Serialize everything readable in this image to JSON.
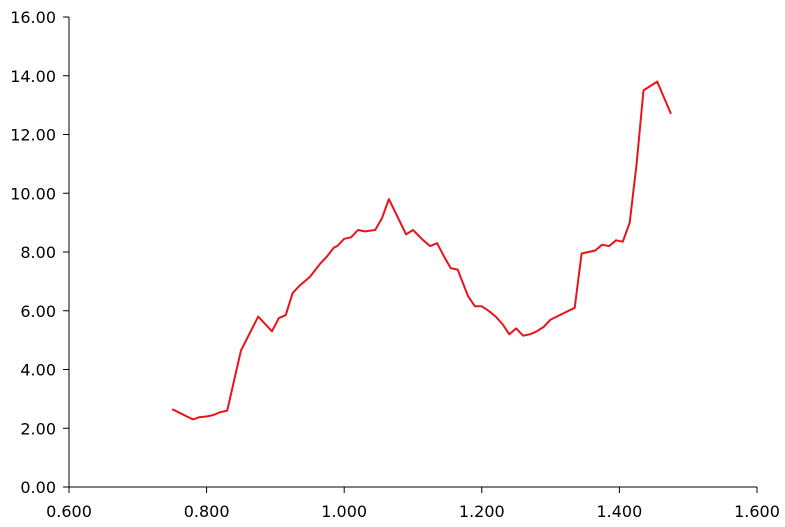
{
  "chart_data": {
    "type": "line",
    "title": "",
    "xlabel": "",
    "ylabel": "",
    "xlim": [
      0.6,
      1.6
    ],
    "ylim": [
      0,
      16
    ],
    "x_ticks": [
      "0.600",
      "0.800",
      "1.000",
      "1.200",
      "1.400",
      "1.600"
    ],
    "y_ticks": [
      "0.00",
      "2.00",
      "4.00",
      "6.00",
      "8.00",
      "10.00",
      "12.00",
      "14.00",
      "16.00"
    ],
    "grid": false,
    "legend": "none",
    "line_color": "#e8141b",
    "series": [
      {
        "x": [
          0.75,
          0.78,
          0.79,
          0.8,
          0.81,
          0.82,
          0.83,
          0.85,
          0.875,
          0.895,
          0.905,
          0.915,
          0.925,
          0.935,
          0.95,
          0.965,
          0.975,
          0.985,
          0.99,
          1.0,
          1.01,
          1.02,
          1.03,
          1.045,
          1.055,
          1.065,
          1.09,
          1.1,
          1.115,
          1.125,
          1.135,
          1.145,
          1.155,
          1.165,
          1.18,
          1.19,
          1.2,
          1.21,
          1.22,
          1.23,
          1.24,
          1.25,
          1.26,
          1.27,
          1.28,
          1.29,
          1.3,
          1.335,
          1.345,
          1.355,
          1.365,
          1.375,
          1.385,
          1.395,
          1.405,
          1.415,
          1.425,
          1.435,
          1.455,
          1.475
        ],
        "y": [
          2.65,
          2.3,
          2.38,
          2.4,
          2.45,
          2.55,
          2.6,
          4.65,
          5.8,
          5.3,
          5.75,
          5.85,
          6.6,
          6.85,
          7.15,
          7.6,
          7.85,
          8.15,
          8.2,
          8.45,
          8.5,
          8.75,
          8.7,
          8.75,
          9.15,
          9.8,
          8.6,
          8.75,
          8.4,
          8.2,
          8.3,
          7.85,
          7.45,
          7.4,
          6.5,
          6.15,
          6.15,
          6.0,
          5.8,
          5.55,
          5.2,
          5.4,
          5.15,
          5.2,
          5.3,
          5.45,
          5.7,
          6.1,
          7.95,
          8.0,
          8.05,
          8.25,
          8.2,
          8.4,
          8.35,
          9.0,
          11.0,
          13.5,
          13.8,
          12.7
        ]
      }
    ]
  }
}
